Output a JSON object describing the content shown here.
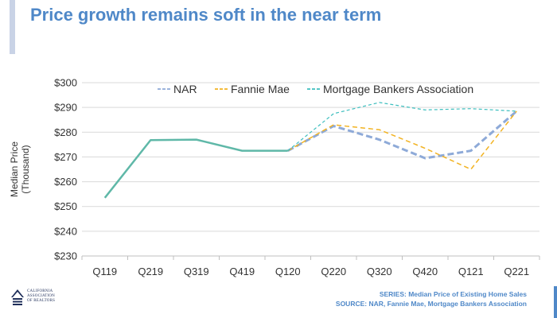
{
  "page": {
    "title": "Price growth remains soft in the near term"
  },
  "logo": {
    "line1": "CALIFORNIA",
    "line2": "ASSOCIATION",
    "line3": "OF REALTORS"
  },
  "footer": {
    "series": "SERIES: Median Price of Existing Home Sales",
    "source": "SOURCE: NAR, Fannie Mae, Mortgage Bankers Association"
  },
  "chart_data": {
    "type": "line",
    "title": "",
    "xlabel": "",
    "ylabel": "Median Price (Thousand)",
    "ylabel_lines": [
      "Median Price",
      "(Thousand)"
    ],
    "ylim": [
      230,
      300
    ],
    "yticks": [
      230,
      240,
      250,
      260,
      270,
      280,
      290,
      300
    ],
    "ytick_labels": [
      "$230",
      "$240",
      "$250",
      "$260",
      "$270",
      "$280",
      "$290",
      "$300"
    ],
    "grid": "horizontal",
    "legend_position": "top",
    "categories": [
      "Q119",
      "Q219",
      "Q319",
      "Q419",
      "Q120",
      "Q220",
      "Q320",
      "Q420",
      "Q121",
      "Q221"
    ],
    "historical_count": 5,
    "historical_color": "#5fb8a8",
    "series": [
      {
        "name": "NAR",
        "color": "#8eaad8",
        "values": [
          253.5,
          276.8,
          277.0,
          272.5,
          272.5,
          282.5,
          277.0,
          269.5,
          272.5,
          288.5
        ]
      },
      {
        "name": "Fannie Mae",
        "color": "#f2b322",
        "values": [
          253.5,
          276.8,
          277.0,
          272.5,
          272.5,
          283.0,
          281.0,
          273.5,
          265.0,
          288.5
        ]
      },
      {
        "name": "Mortgage Bankers Association",
        "color": "#3fbfbf",
        "values": [
          253.5,
          276.8,
          277.0,
          272.5,
          272.5,
          287.5,
          292.0,
          289.0,
          289.5,
          288.5
        ]
      }
    ]
  }
}
